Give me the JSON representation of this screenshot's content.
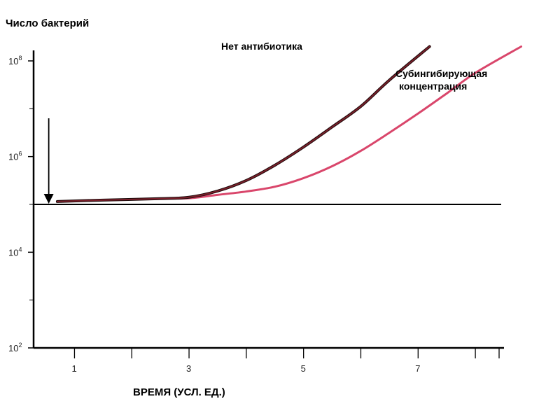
{
  "chart_data": {
    "type": "line",
    "title": "Число бактерий",
    "xlabel": "ВРЕМЯ (УСЛ. ЕД.)",
    "ylabel": "",
    "y_scale": "log10",
    "xlim": [
      0.2,
      8.2
    ],
    "ylim": [
      2,
      8.6
    ],
    "x_ticks_labeled": [
      {
        "value": 1,
        "label": "1"
      },
      {
        "value": 3,
        "label": "3"
      },
      {
        "value": 5,
        "label": "5"
      },
      {
        "value": 7,
        "label": "7"
      }
    ],
    "x_minor_ticks": [
      2,
      4,
      6,
      8
    ],
    "y_ticks": [
      {
        "value": 8,
        "base": "10",
        "exp": "8"
      },
      {
        "value": 6,
        "base": "10",
        "exp": "6"
      },
      {
        "value": 4,
        "base": "10",
        "exp": "4"
      },
      {
        "value": 2,
        "base": "10",
        "exp": "2"
      }
    ],
    "y_minor_ticks": [
      7,
      5,
      3
    ],
    "baseline": {
      "y": 5.0
    },
    "arrow": {
      "x": 0.55,
      "y_from": 6.8,
      "y_to": 5.0
    },
    "series": [
      {
        "name": "Нет антибиотика",
        "color": "#7a1f2a",
        "x": [
          0.7,
          1.5,
          2.5,
          3.0,
          3.5,
          4.0,
          4.5,
          5.0,
          5.5,
          6.0,
          6.5,
          7.2
        ],
        "y": [
          5.06,
          5.09,
          5.12,
          5.15,
          5.28,
          5.5,
          5.82,
          6.2,
          6.62,
          7.05,
          7.6,
          8.3
        ]
      },
      {
        "name": "Субингибирующая\nконцентрация",
        "color": "#d9466b",
        "x": [
          0.7,
          1.5,
          2.5,
          3.0,
          3.5,
          4.0,
          4.5,
          5.0,
          5.5,
          6.0,
          6.5,
          7.0,
          7.5,
          8.0,
          8.8
        ],
        "y": [
          5.06,
          5.09,
          5.12,
          5.13,
          5.2,
          5.27,
          5.37,
          5.55,
          5.8,
          6.12,
          6.5,
          6.9,
          7.32,
          7.75,
          8.3
        ]
      }
    ],
    "series_labels": [
      {
        "lines": [
          "Нет антибиотика"
        ]
      },
      {
        "lines": [
          "Субингибирующая",
          "концентрация"
        ]
      }
    ],
    "grid": false,
    "legend": "inline labels near curves"
  }
}
